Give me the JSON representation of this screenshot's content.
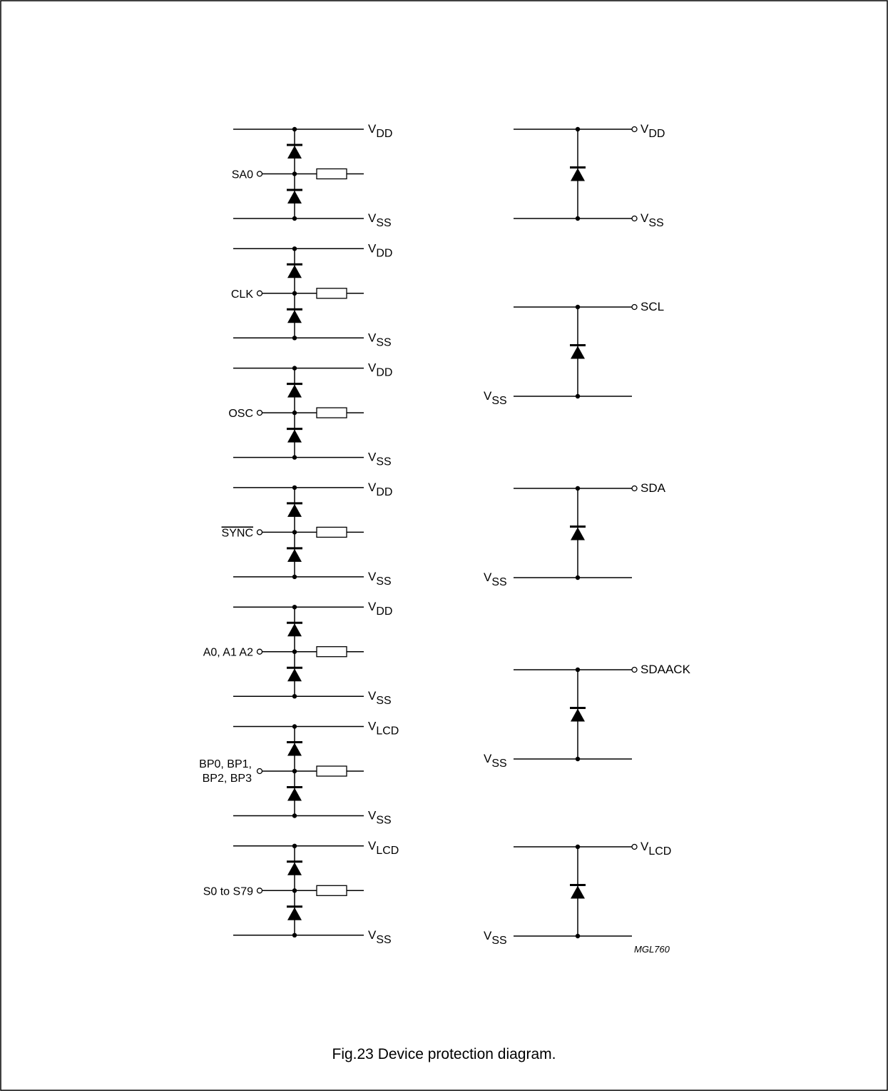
{
  "figure": {
    "code": "MGL760",
    "caption": "Fig.23  Device protection diagram."
  },
  "left_circuits": [
    {
      "pin": "SA0",
      "pin_overline": false,
      "top_rail": {
        "main": "V",
        "sub": "DD"
      },
      "bottom_rail": {
        "main": "V",
        "sub": "SS"
      }
    },
    {
      "pin": "CLK",
      "pin_overline": false,
      "top_rail": {
        "main": "V",
        "sub": "DD"
      },
      "bottom_rail": {
        "main": "V",
        "sub": "SS"
      }
    },
    {
      "pin": "OSC",
      "pin_overline": false,
      "top_rail": {
        "main": "V",
        "sub": "DD"
      },
      "bottom_rail": {
        "main": "V",
        "sub": "SS"
      }
    },
    {
      "pin": "SYNC",
      "pin_overline": true,
      "top_rail": {
        "main": "V",
        "sub": "DD"
      },
      "bottom_rail": {
        "main": "V",
        "sub": "SS"
      }
    },
    {
      "pin": "A0, A1 A2",
      "pin_overline": false,
      "top_rail": {
        "main": "V",
        "sub": "DD"
      },
      "bottom_rail": {
        "main": "V",
        "sub": "SS"
      }
    },
    {
      "pin": "BP0, BP1,\nBP2, BP3",
      "pin_overline": false,
      "top_rail": {
        "main": "V",
        "sub": "LCD"
      },
      "bottom_rail": {
        "main": "V",
        "sub": "SS"
      }
    },
    {
      "pin": "S0 to S79",
      "pin_overline": false,
      "top_rail": {
        "main": "V",
        "sub": "LCD"
      },
      "bottom_rail": {
        "main": "V",
        "sub": "SS"
      }
    }
  ],
  "right_circuits": [
    {
      "style": "both-right",
      "top_label": {
        "main": "V",
        "sub": "DD"
      },
      "bottom_label": {
        "main": "V",
        "sub": "SS"
      }
    },
    {
      "style": "top-right",
      "top_label": {
        "main": "SCL",
        "sub": ""
      },
      "bottom_label": {
        "main": "V",
        "sub": "SS"
      }
    },
    {
      "style": "top-right",
      "top_label": {
        "main": "SDA",
        "sub": ""
      },
      "bottom_label": {
        "main": "V",
        "sub": "SS"
      }
    },
    {
      "style": "top-right",
      "top_label": {
        "main": "SDAACK",
        "sub": ""
      },
      "bottom_label": {
        "main": "V",
        "sub": "SS"
      }
    },
    {
      "style": "top-right",
      "top_label": {
        "main": "V",
        "sub": "LCD"
      },
      "bottom_label": {
        "main": "V",
        "sub": "SS"
      }
    }
  ]
}
